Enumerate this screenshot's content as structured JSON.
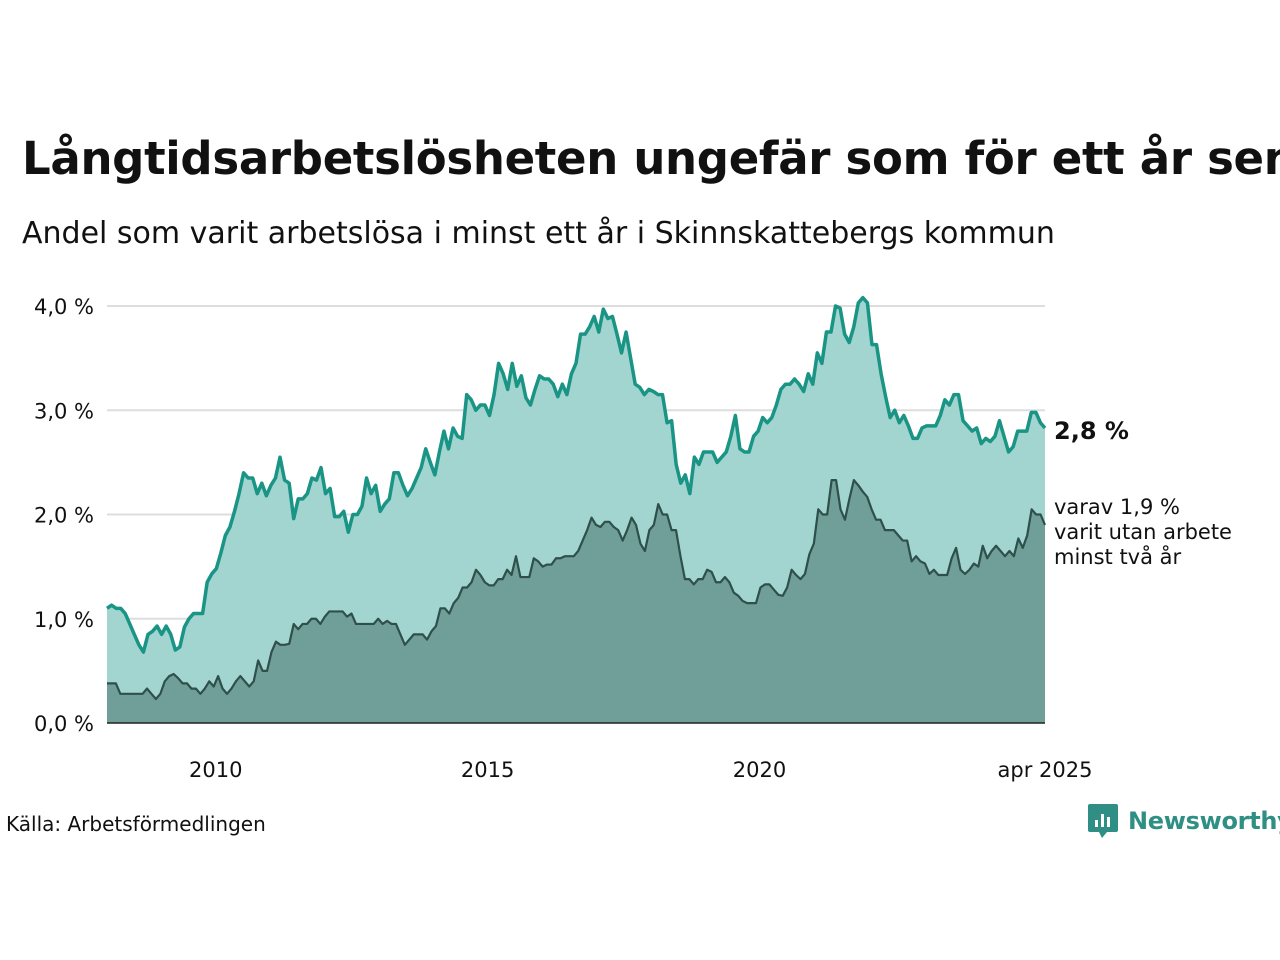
{
  "title": "Långtidsarbetslösheten ungefär som för ett år sen",
  "subtitle": "Andel som varit arbetslösa i minst ett år i Skinnskattebergs kommun",
  "source": "Källa: Arbetsförmedlingen",
  "logo_text": "Newsworthy",
  "colors": {
    "series1_line": "#1a9485",
    "series1_fill": "#a2d5d0",
    "series2_line": "#2f4f4a",
    "series2_fill": "#709e98",
    "grid": "#dddddd",
    "logo": "#2f8f84"
  },
  "chart_data": {
    "type": "area",
    "ylim": [
      0,
      4.0
    ],
    "y_ticks": [
      "0,0 %",
      "1,0 %",
      "2,0 %",
      "3,0 %",
      "4,0 %"
    ],
    "x_ticks": [
      {
        "year": 2010,
        "label": "2010"
      },
      {
        "year": 2015,
        "label": "2015"
      },
      {
        "year": 2020,
        "label": "2020"
      },
      {
        "year": 2025.25,
        "label": "apr 2025"
      }
    ],
    "x_start": "2008-01",
    "x_end": "2025-04",
    "grid": true,
    "series": [
      {
        "values": [
          1.1,
          1.13,
          1.1,
          1.1,
          1.05,
          0.95,
          0.85,
          0.75,
          0.68,
          0.85,
          0.88,
          0.93,
          0.85,
          0.93,
          0.85,
          0.7,
          0.73,
          0.92,
          1.0,
          1.05,
          1.05,
          1.05,
          1.35,
          1.43,
          1.48,
          1.63,
          1.8,
          1.88,
          2.03,
          2.2,
          2.4,
          2.35,
          2.35,
          2.2,
          2.3,
          2.18,
          2.28,
          2.35,
          2.55,
          2.33,
          2.3,
          1.96,
          2.15,
          2.15,
          2.2,
          2.35,
          2.33,
          2.45,
          2.2,
          2.25,
          1.98,
          1.98,
          2.03,
          1.83,
          2.0,
          2.0,
          2.08,
          2.35,
          2.2,
          2.28,
          2.03,
          2.1,
          2.15,
          2.4,
          2.4,
          2.28,
          2.18,
          2.25,
          2.35,
          2.45,
          2.63,
          2.5,
          2.38,
          2.6,
          2.8,
          2.63,
          2.83,
          2.75,
          2.73,
          3.15,
          3.1,
          3.0,
          3.05,
          3.05,
          2.95,
          3.15,
          3.45,
          3.35,
          3.2,
          3.45,
          3.23,
          3.33,
          3.12,
          3.05,
          3.2,
          3.33,
          3.3,
          3.3,
          3.25,
          3.13,
          3.25,
          3.15,
          3.35,
          3.45,
          3.73,
          3.73,
          3.8,
          3.9,
          3.75,
          3.97,
          3.88,
          3.9,
          3.73,
          3.55,
          3.75,
          3.5,
          3.25,
          3.22,
          3.15,
          3.2,
          3.18,
          3.15,
          3.15,
          2.88,
          2.9,
          2.48,
          2.3,
          2.38,
          2.2,
          2.55,
          2.48,
          2.6,
          2.6,
          2.6,
          2.5,
          2.55,
          2.6,
          2.75,
          2.95,
          2.63,
          2.6,
          2.6,
          2.75,
          2.8,
          2.93,
          2.88,
          2.93,
          3.05,
          3.2,
          3.25,
          3.25,
          3.3,
          3.25,
          3.18,
          3.35,
          3.25,
          3.55,
          3.45,
          3.75,
          3.75,
          4.0,
          3.98,
          3.73,
          3.65,
          3.8,
          4.03,
          4.08,
          4.03,
          3.63,
          3.63,
          3.35,
          3.13,
          2.93,
          3.0,
          2.88,
          2.95,
          2.85,
          2.73,
          2.73,
          2.83,
          2.85,
          2.85,
          2.85,
          2.95,
          3.1,
          3.05,
          3.15,
          3.15,
          2.9,
          2.85,
          2.8,
          2.83,
          2.68,
          2.73,
          2.7,
          2.75,
          2.9,
          2.75,
          2.6,
          2.65,
          2.8,
          2.8,
          2.8,
          2.98,
          2.98,
          2.88,
          2.83
        ],
        "end_label": "2,8 %"
      },
      {
        "values": [
          0.38,
          0.38,
          0.38,
          0.28,
          0.28,
          0.28,
          0.28,
          0.28,
          0.28,
          0.33,
          0.28,
          0.23,
          0.28,
          0.4,
          0.45,
          0.47,
          0.43,
          0.38,
          0.38,
          0.33,
          0.33,
          0.28,
          0.33,
          0.4,
          0.35,
          0.45,
          0.33,
          0.28,
          0.33,
          0.4,
          0.45,
          0.4,
          0.35,
          0.4,
          0.6,
          0.5,
          0.5,
          0.68,
          0.78,
          0.75,
          0.75,
          0.76,
          0.95,
          0.9,
          0.95,
          0.95,
          1.0,
          1.0,
          0.95,
          1.02,
          1.07,
          1.07,
          1.07,
          1.07,
          1.02,
          1.05,
          0.95,
          0.95,
          0.95,
          0.95,
          0.95,
          1.0,
          0.95,
          0.98,
          0.95,
          0.95,
          0.85,
          0.75,
          0.8,
          0.85,
          0.85,
          0.85,
          0.8,
          0.88,
          0.93,
          1.1,
          1.1,
          1.05,
          1.15,
          1.2,
          1.3,
          1.3,
          1.35,
          1.47,
          1.42,
          1.35,
          1.32,
          1.32,
          1.38,
          1.38,
          1.47,
          1.42,
          1.6,
          1.4,
          1.4,
          1.4,
          1.58,
          1.55,
          1.5,
          1.52,
          1.52,
          1.58,
          1.58,
          1.6,
          1.6,
          1.6,
          1.65,
          1.75,
          1.85,
          1.97,
          1.9,
          1.88,
          1.93,
          1.93,
          1.88,
          1.85,
          1.75,
          1.85,
          1.97,
          1.9,
          1.72,
          1.65,
          1.85,
          1.9,
          2.1,
          2.0,
          2.0,
          1.85,
          1.85,
          1.6,
          1.38,
          1.38,
          1.33,
          1.38,
          1.38,
          1.47,
          1.45,
          1.35,
          1.35,
          1.4,
          1.35,
          1.25,
          1.22,
          1.17,
          1.15,
          1.15,
          1.15,
          1.3,
          1.33,
          1.33,
          1.28,
          1.23,
          1.22,
          1.3,
          1.47,
          1.42,
          1.38,
          1.43,
          1.62,
          1.72,
          2.05,
          2.0,
          2.0,
          2.33,
          2.33,
          2.05,
          1.95,
          2.15,
          2.33,
          2.28,
          2.22,
          2.17,
          2.05,
          1.95,
          1.95,
          1.85,
          1.85,
          1.85,
          1.8,
          1.75,
          1.75,
          1.55,
          1.6,
          1.55,
          1.53,
          1.43,
          1.47,
          1.42,
          1.42,
          1.42,
          1.58,
          1.68,
          1.47,
          1.43,
          1.47,
          1.53,
          1.5,
          1.7,
          1.58,
          1.65,
          1.7,
          1.65,
          1.6,
          1.65,
          1.6,
          1.77,
          1.68,
          1.8,
          2.05,
          2.0,
          2.0,
          1.9
        ],
        "end_label": [
          "varav 1,9 %",
          "varit utan arbete",
          "minst två år"
        ]
      }
    ]
  }
}
